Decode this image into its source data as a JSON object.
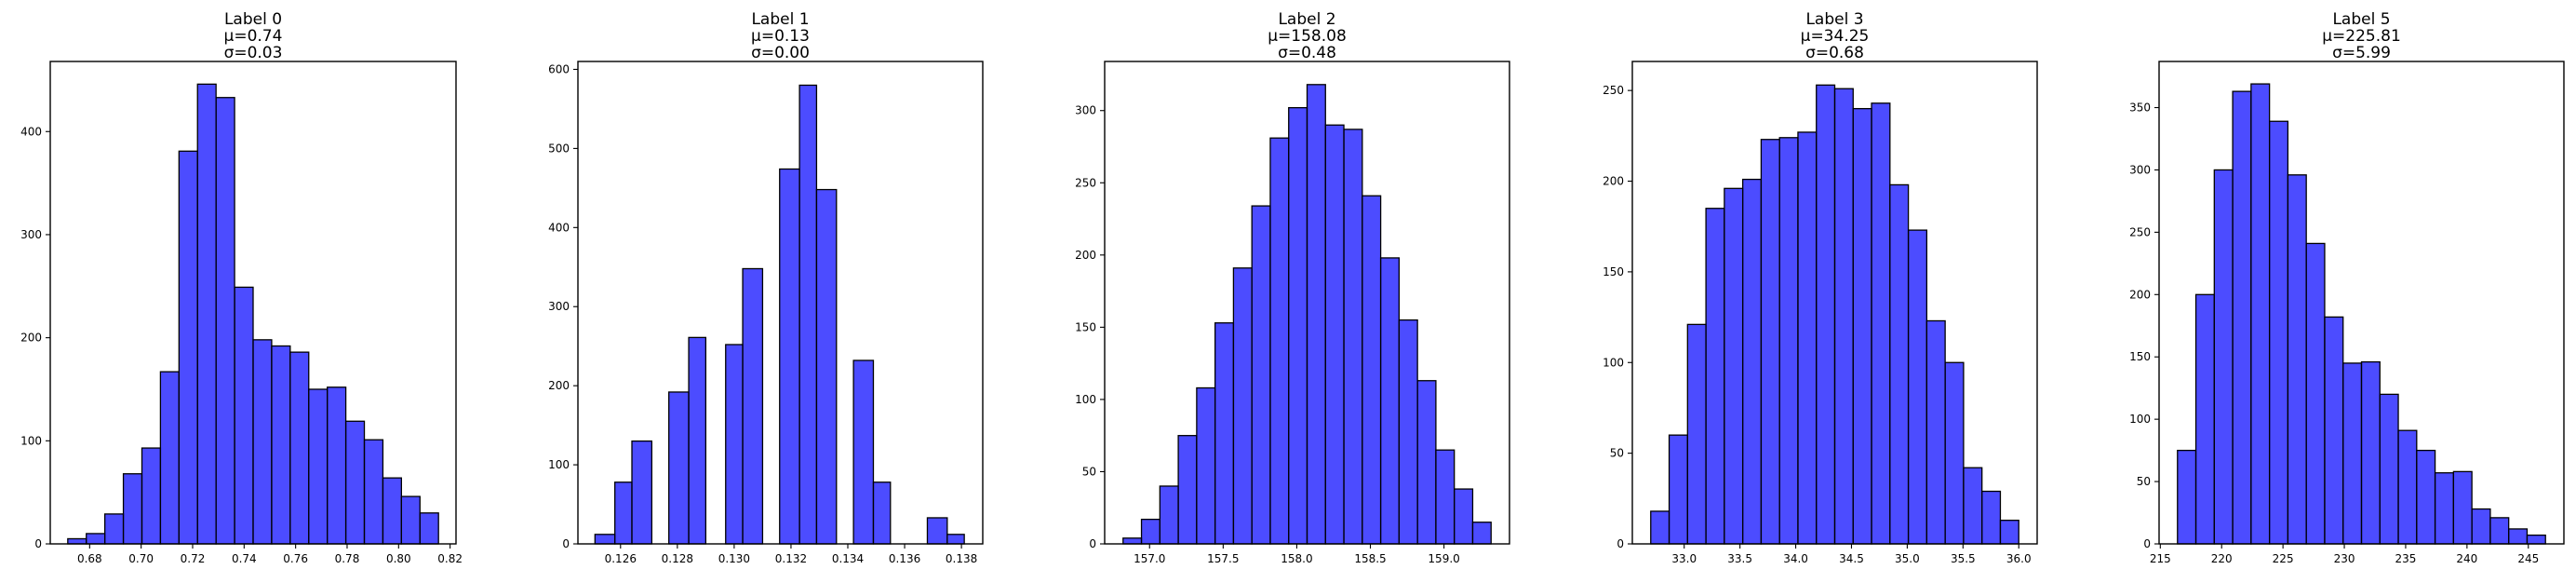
{
  "figure": {
    "background": "#ffffff",
    "bar_color": "#0000ff",
    "bar_opacity": 0.7,
    "bar_edge_color": "#000000"
  },
  "chart_data": [
    {
      "type": "bar",
      "title_lines": [
        "Label 0",
        "μ=0.74",
        "σ=0.03"
      ],
      "bin_edges": [
        0.6715,
        0.6787,
        0.6859,
        0.6931,
        0.7003,
        0.7075,
        0.7147,
        0.7219,
        0.7291,
        0.7363,
        0.7435,
        0.7507,
        0.7579,
        0.7651,
        0.7723,
        0.7795,
        0.7867,
        0.7939,
        0.8011,
        0.8083,
        0.8155
      ],
      "counts": [
        5,
        10,
        29,
        68,
        93,
        167,
        381,
        446,
        433,
        249,
        198,
        192,
        186,
        150,
        152,
        119,
        101,
        64,
        46,
        30
      ],
      "xlim": [
        0.6647,
        0.8223
      ],
      "ylim": [
        0,
        468
      ],
      "xticks": [
        0.68,
        0.7,
        0.72,
        0.74,
        0.76,
        0.78,
        0.8,
        0.82
      ],
      "xtick_labels": [
        "0.68",
        "0.70",
        "0.72",
        "0.74",
        "0.76",
        "0.78",
        "0.80",
        "0.82"
      ],
      "yticks": [
        0,
        100,
        200,
        300,
        400
      ],
      "ytick_labels": [
        "0",
        "100",
        "200",
        "300",
        "400"
      ],
      "grid": false,
      "legend": "none"
    },
    {
      "type": "bar",
      "title_lines": [
        "Label 1",
        "μ=0.13",
        "σ=0.00"
      ],
      "bin_edges": [
        0.1251,
        0.1258,
        0.1264,
        0.1271,
        0.1277,
        0.1284,
        0.129,
        0.1297,
        0.1303,
        0.131,
        0.1316,
        0.1323,
        0.1329,
        0.1336,
        0.1342,
        0.1349,
        0.1355,
        0.1362,
        0.1368,
        0.1375,
        0.1381
      ],
      "counts": [
        12,
        78,
        130,
        0,
        192,
        261,
        0,
        252,
        348,
        0,
        474,
        580,
        448,
        0,
        232,
        78,
        0,
        0,
        33,
        12
      ],
      "xlim": [
        0.1245,
        0.13875
      ],
      "ylim": [
        0,
        610
      ],
      "xticks": [
        0.126,
        0.128,
        0.13,
        0.132,
        0.134,
        0.136,
        0.138
      ],
      "xtick_labels": [
        "0.126",
        "0.128",
        "0.130",
        "0.132",
        "0.134",
        "0.136",
        "0.138"
      ],
      "yticks": [
        0,
        100,
        200,
        300,
        400,
        500,
        600
      ],
      "ytick_labels": [
        "0",
        "100",
        "200",
        "300",
        "400",
        "500",
        "600"
      ],
      "grid": false,
      "legend": "none"
    },
    {
      "type": "bar",
      "title_lines": [
        "Label 2",
        "μ=158.08",
        "σ=0.48"
      ],
      "bin_edges": [
        156.82,
        156.945,
        157.07,
        157.195,
        157.32,
        157.445,
        157.57,
        157.695,
        157.82,
        157.945,
        158.07,
        158.195,
        158.32,
        158.445,
        158.57,
        158.695,
        158.82,
        158.945,
        159.07,
        159.195,
        159.32
      ],
      "counts": [
        4,
        17,
        40,
        75,
        108,
        153,
        191,
        234,
        281,
        302,
        318,
        290,
        287,
        241,
        198,
        155,
        113,
        65,
        38,
        15
      ],
      "xlim": [
        156.695,
        159.445
      ],
      "ylim": [
        0,
        334
      ],
      "xticks": [
        157.0,
        157.5,
        158.0,
        158.5,
        159.0
      ],
      "xtick_labels": [
        "157.0",
        "157.5",
        "158.0",
        "158.5",
        "159.0"
      ],
      "yticks": [
        0,
        50,
        100,
        150,
        200,
        250,
        300
      ],
      "ytick_labels": [
        "0",
        "50",
        "100",
        "150",
        "200",
        "250",
        "300"
      ],
      "grid": false,
      "legend": "none"
    },
    {
      "type": "bar",
      "title_lines": [
        "Label 3",
        "μ=34.25",
        "σ=0.68"
      ],
      "bin_edges": [
        32.7,
        32.865,
        33.03,
        33.195,
        33.36,
        33.525,
        33.69,
        33.855,
        34.02,
        34.185,
        34.35,
        34.515,
        34.68,
        34.845,
        35.01,
        35.175,
        35.34,
        35.505,
        35.67,
        35.835,
        36.0
      ],
      "counts": [
        18,
        60,
        121,
        185,
        196,
        201,
        223,
        224,
        227,
        253,
        251,
        240,
        243,
        198,
        173,
        123,
        100,
        42,
        29,
        13
      ],
      "xlim": [
        32.535,
        36.165
      ],
      "ylim": [
        0,
        266
      ],
      "xticks": [
        33.0,
        33.5,
        34.0,
        34.5,
        35.0,
        35.5,
        36.0
      ],
      "xtick_labels": [
        "33.0",
        "33.5",
        "34.0",
        "34.5",
        "35.0",
        "35.5",
        "36.0"
      ],
      "yticks": [
        0,
        50,
        100,
        150,
        200,
        250
      ],
      "ytick_labels": [
        "0",
        "50",
        "100",
        "150",
        "200",
        "250"
      ],
      "grid": false,
      "legend": "none"
    },
    {
      "type": "bar",
      "title_lines": [
        "Label 5",
        "μ=225.81",
        "σ=5.99"
      ],
      "bin_edges": [
        216.4,
        217.9,
        219.4,
        220.9,
        222.4,
        223.9,
        225.4,
        226.9,
        228.4,
        229.9,
        231.4,
        232.9,
        234.4,
        235.9,
        237.4,
        238.9,
        240.4,
        241.9,
        243.4,
        244.9,
        246.4
      ],
      "counts": [
        75,
        200,
        300,
        363,
        369,
        339,
        296,
        241,
        182,
        145,
        146,
        120,
        91,
        75,
        57,
        58,
        28,
        21,
        12,
        7
      ],
      "xlim": [
        214.9,
        247.9
      ],
      "ylim": [
        0,
        387
      ],
      "xticks": [
        215,
        220,
        225,
        230,
        235,
        240,
        245
      ],
      "xtick_labels": [
        "215",
        "220",
        "225",
        "230",
        "235",
        "240",
        "245"
      ],
      "yticks": [
        0,
        50,
        100,
        150,
        200,
        250,
        300,
        350
      ],
      "ytick_labels": [
        "0",
        "50",
        "100",
        "150",
        "200",
        "250",
        "300",
        "350"
      ],
      "grid": false,
      "legend": "none"
    }
  ]
}
